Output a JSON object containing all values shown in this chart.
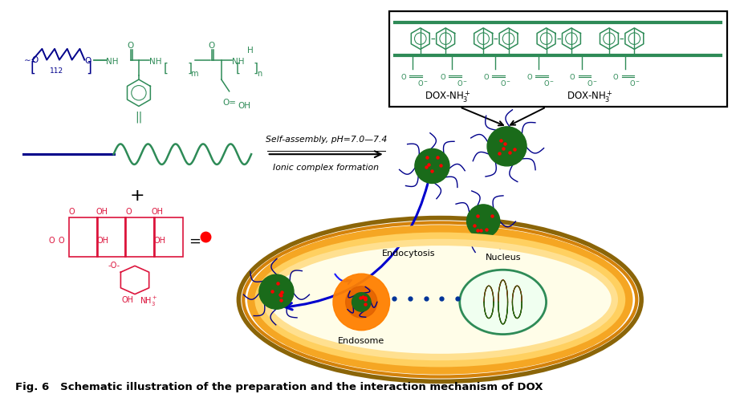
{
  "title": "Fig. 6   Schematic illustration of the preparation and the interaction mechanism of DOX",
  "title_fontsize": 11,
  "bg_color": "#ffffff",
  "fig_width": 9.27,
  "fig_height": 5.02,
  "arrow_label_top": "Self-assembly, pH=7.0—7.4",
  "arrow_label_bottom": "Ionic complex formation",
  "dox_label1": "DOX-NH3+",
  "dox_label2": "DOX-NH3+",
  "endocytosis_label": "Endocytosis",
  "nucleus_label": "Nucleus",
  "endosome_label": "Endosome",
  "polymer_color": "#2e8b57",
  "peg_color": "#00008b",
  "dox_color": "#dc143c",
  "nanoparticle_color": "#1a6b1a",
  "arm_color": "#00008b",
  "cell_outer_color1": "#b8860b",
  "cell_outer_color2": "#ffa500",
  "cell_inner_color": "#fffacd",
  "endosome_color": "#ff8c00",
  "nucleus_edge": "#2e8b57",
  "nucleus_bg": "#f0fff0",
  "arrow_color": "#0000cd",
  "box_border_color": "#000000",
  "caption_color": "#000000"
}
